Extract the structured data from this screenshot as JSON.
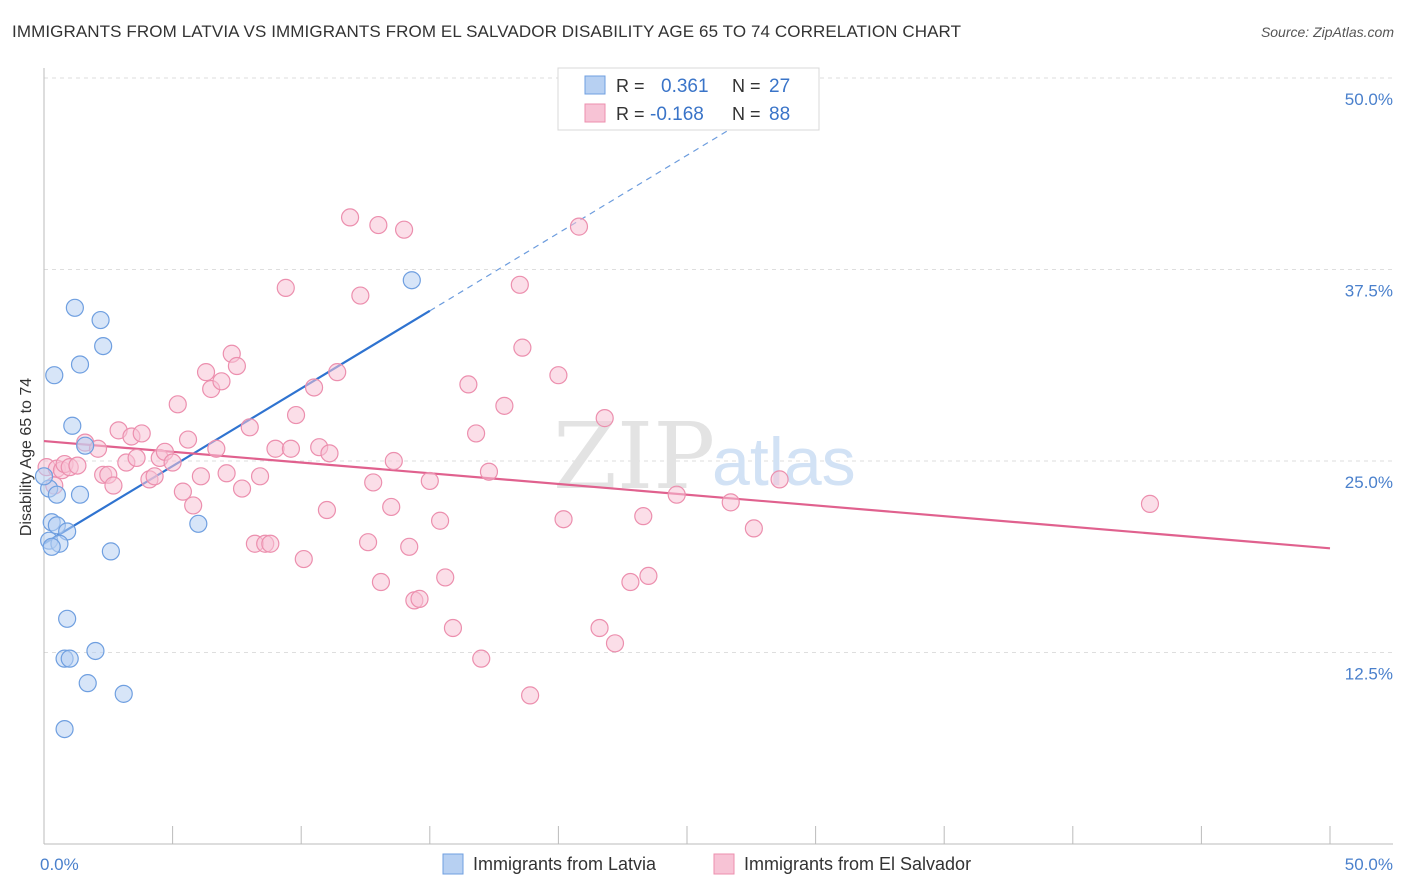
{
  "title": "IMMIGRANTS FROM LATVIA VS IMMIGRANTS FROM EL SALVADOR DISABILITY AGE 65 TO 74 CORRELATION CHART",
  "source": "Source: ZipAtlas.com",
  "watermark": {
    "zip": "ZIP",
    "atlas": "atlas"
  },
  "chart_data": {
    "type": "scatter",
    "ylabel": "Disability Age 65 to 74",
    "xlim": [
      0,
      50
    ],
    "ylim": [
      0,
      50
    ],
    "x_ticks": [
      {
        "value": 0,
        "label": "0.0%"
      },
      {
        "value": 50,
        "label": "50.0%"
      }
    ],
    "y_ticks": [
      {
        "value": 12.5,
        "label": "12.5%"
      },
      {
        "value": 25,
        "label": "25.0%"
      },
      {
        "value": 37.5,
        "label": "37.5%"
      },
      {
        "value": 50,
        "label": "50.0%"
      }
    ],
    "grid": true,
    "legend_position": "top-center",
    "series": [
      {
        "name": "Immigrants from Latvia",
        "color": "#6f9fe0",
        "fill": "#b7d0f2",
        "line_color": "#2f73d0",
        "R": "0.361",
        "N": "27",
        "trend": {
          "x0": 0.0,
          "y0": 19.6,
          "x1": 15.0,
          "y1": 34.8,
          "x_dash_end": 28.0,
          "y_dash_end": 48.0
        },
        "points": [
          [
            1.2,
            35.0
          ],
          [
            2.2,
            34.2
          ],
          [
            2.3,
            32.5
          ],
          [
            1.4,
            31.3
          ],
          [
            0.4,
            30.6
          ],
          [
            1.1,
            27.3
          ],
          [
            1.6,
            26.0
          ],
          [
            0.2,
            23.2
          ],
          [
            0.5,
            22.8
          ],
          [
            1.4,
            22.8
          ],
          [
            0.3,
            21.0
          ],
          [
            0.5,
            20.8
          ],
          [
            0.9,
            20.4
          ],
          [
            0.2,
            19.8
          ],
          [
            0.6,
            19.6
          ],
          [
            0.3,
            19.4
          ],
          [
            2.6,
            19.1
          ],
          [
            6.0,
            20.9
          ],
          [
            0.9,
            14.7
          ],
          [
            2.0,
            12.6
          ],
          [
            0.8,
            12.1
          ],
          [
            1.0,
            12.1
          ],
          [
            1.7,
            10.5
          ],
          [
            3.1,
            9.8
          ],
          [
            0.8,
            7.5
          ],
          [
            14.3,
            36.8
          ],
          [
            0.0,
            24.0
          ]
        ]
      },
      {
        "name": "Immigrants from El Salvador",
        "color": "#ec8fae",
        "fill": "#f7c3d5",
        "line_color": "#e0618e",
        "R": "-0.168",
        "N": "88",
        "trend": {
          "x0": 0.0,
          "y0": 26.3,
          "x1": 50.0,
          "y1": 19.3
        },
        "points": [
          [
            0.1,
            24.6
          ],
          [
            0.5,
            24.5
          ],
          [
            0.7,
            24.4
          ],
          [
            0.8,
            24.8
          ],
          [
            1.0,
            24.6
          ],
          [
            1.3,
            24.7
          ],
          [
            1.6,
            26.2
          ],
          [
            2.1,
            25.8
          ],
          [
            2.3,
            24.1
          ],
          [
            2.5,
            24.1
          ],
          [
            2.7,
            23.4
          ],
          [
            2.9,
            27.0
          ],
          [
            3.2,
            24.9
          ],
          [
            3.4,
            26.6
          ],
          [
            3.6,
            25.2
          ],
          [
            3.8,
            26.8
          ],
          [
            4.1,
            23.8
          ],
          [
            4.3,
            24.0
          ],
          [
            4.5,
            25.2
          ],
          [
            4.7,
            25.6
          ],
          [
            5.0,
            24.9
          ],
          [
            5.2,
            28.7
          ],
          [
            5.4,
            23.0
          ],
          [
            5.6,
            26.4
          ],
          [
            5.8,
            22.1
          ],
          [
            6.1,
            24.0
          ],
          [
            6.3,
            30.8
          ],
          [
            6.5,
            29.7
          ],
          [
            6.7,
            25.8
          ],
          [
            6.9,
            30.2
          ],
          [
            7.1,
            24.2
          ],
          [
            7.3,
            32.0
          ],
          [
            7.5,
            31.2
          ],
          [
            7.7,
            23.2
          ],
          [
            8.0,
            27.2
          ],
          [
            8.2,
            19.6
          ],
          [
            8.4,
            24.0
          ],
          [
            8.6,
            19.6
          ],
          [
            8.8,
            19.6
          ],
          [
            9.0,
            25.8
          ],
          [
            9.4,
            36.3
          ],
          [
            9.6,
            25.8
          ],
          [
            9.8,
            28.0
          ],
          [
            10.1,
            18.6
          ],
          [
            10.5,
            29.8
          ],
          [
            10.7,
            25.9
          ],
          [
            11.0,
            21.8
          ],
          [
            11.1,
            25.5
          ],
          [
            11.4,
            30.8
          ],
          [
            11.9,
            40.9
          ],
          [
            12.3,
            35.8
          ],
          [
            12.6,
            19.7
          ],
          [
            12.8,
            23.6
          ],
          [
            13.0,
            40.4
          ],
          [
            13.1,
            17.1
          ],
          [
            13.5,
            22.0
          ],
          [
            13.6,
            25.0
          ],
          [
            14.0,
            40.1
          ],
          [
            14.2,
            19.4
          ],
          [
            14.4,
            15.9
          ],
          [
            14.6,
            16.0
          ],
          [
            15.0,
            23.7
          ],
          [
            15.4,
            21.1
          ],
          [
            15.6,
            17.4
          ],
          [
            15.9,
            14.1
          ],
          [
            16.5,
            30.0
          ],
          [
            16.8,
            26.8
          ],
          [
            17.0,
            12.1
          ],
          [
            17.3,
            24.3
          ],
          [
            17.9,
            28.6
          ],
          [
            18.5,
            36.5
          ],
          [
            18.6,
            32.4
          ],
          [
            18.9,
            9.7
          ],
          [
            20.0,
            30.6
          ],
          [
            20.2,
            21.2
          ],
          [
            20.8,
            40.3
          ],
          [
            21.6,
            14.1
          ],
          [
            21.8,
            27.8
          ],
          [
            22.2,
            13.1
          ],
          [
            22.8,
            17.1
          ],
          [
            23.3,
            21.4
          ],
          [
            23.5,
            17.5
          ],
          [
            24.6,
            22.8
          ],
          [
            26.7,
            22.3
          ],
          [
            27.6,
            20.6
          ],
          [
            28.6,
            23.8
          ],
          [
            43.0,
            22.2
          ],
          [
            0.4,
            23.4
          ]
        ]
      }
    ]
  }
}
